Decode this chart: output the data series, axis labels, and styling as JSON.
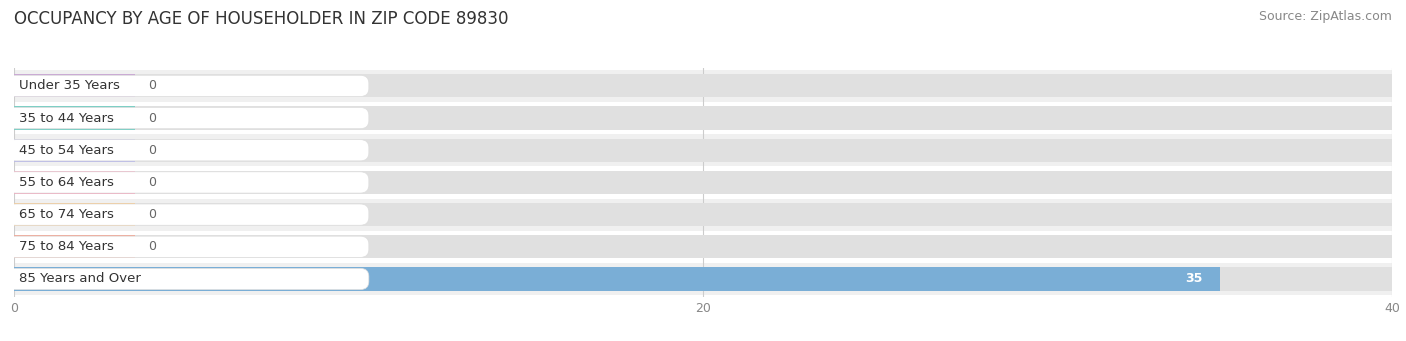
{
  "title": "OCCUPANCY BY AGE OF HOUSEHOLDER IN ZIP CODE 89830",
  "source": "Source: ZipAtlas.com",
  "categories": [
    "Under 35 Years",
    "35 to 44 Years",
    "45 to 54 Years",
    "55 to 64 Years",
    "65 to 74 Years",
    "75 to 84 Years",
    "85 Years and Over"
  ],
  "values": [
    0,
    0,
    0,
    0,
    0,
    0,
    35
  ],
  "bar_colors": [
    "#c9a8d4",
    "#7ecfc5",
    "#b8b8e8",
    "#f4a0b8",
    "#f5c990",
    "#f0a898",
    "#7aaed6"
  ],
  "xlim": [
    0,
    40
  ],
  "xticks": [
    0,
    20,
    40
  ],
  "title_fontsize": 12,
  "source_fontsize": 9,
  "label_fontsize": 9.5,
  "value_fontsize": 9,
  "tick_fontsize": 9,
  "background_color": "#ffffff",
  "bar_height": 0.72,
  "row_bg_colors": [
    "#f0f0f0",
    "#ffffff"
  ],
  "grid_color": "#cccccc",
  "label_bg_color": "#ffffff",
  "zero_bar_width": 3.5
}
